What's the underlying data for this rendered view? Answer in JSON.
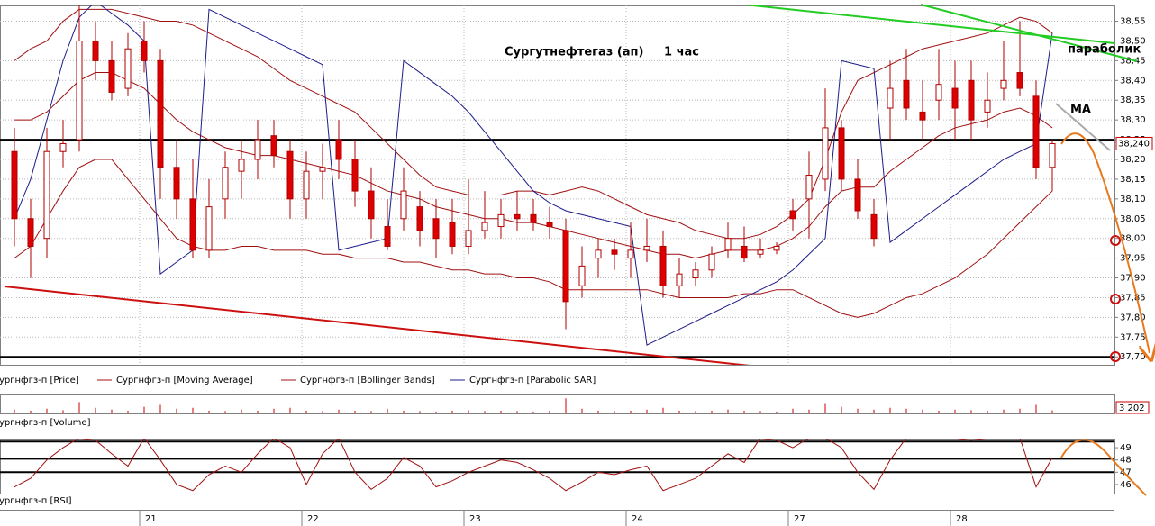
{
  "chart_data": {
    "type": "candlestick",
    "title": "Сургутнефтегаз (ап)",
    "subtitle": "1 час",
    "categories": [
      null,
      null,
      null,
      null,
      null,
      null,
      null,
      null,
      "21",
      null,
      null,
      null,
      null,
      null,
      null,
      null,
      null,
      null,
      "22",
      null,
      null,
      null,
      null,
      null,
      null,
      null,
      null,
      null,
      "23",
      null,
      null,
      null,
      null,
      null,
      null,
      null,
      null,
      null,
      "24",
      null,
      null,
      null,
      null,
      null,
      null,
      null,
      null,
      null,
      "27",
      null,
      null,
      null,
      null,
      null,
      null,
      null,
      null,
      null,
      "28",
      null,
      null,
      null,
      null,
      null,
      null
    ],
    "candles": [
      [
        38.22,
        38.28,
        37.98,
        38.05
      ],
      [
        38.05,
        38.1,
        37.9,
        37.98
      ],
      [
        38.0,
        38.28,
        37.95,
        38.22
      ],
      [
        38.22,
        38.3,
        38.18,
        38.24
      ],
      [
        38.25,
        38.59,
        38.22,
        38.5
      ],
      [
        38.5,
        38.55,
        38.4,
        38.45
      ],
      [
        38.45,
        38.5,
        38.35,
        38.37
      ],
      [
        38.38,
        38.52,
        38.36,
        38.48
      ],
      [
        38.5,
        38.55,
        38.42,
        38.45
      ],
      [
        38.45,
        38.48,
        38.1,
        38.18
      ],
      [
        38.18,
        38.25,
        38.05,
        38.1
      ],
      [
        38.1,
        38.2,
        37.95,
        37.97
      ],
      [
        37.97,
        38.15,
        37.95,
        38.08
      ],
      [
        38.1,
        38.22,
        38.05,
        38.18
      ],
      [
        38.17,
        38.25,
        38.1,
        38.2
      ],
      [
        38.2,
        38.3,
        38.15,
        38.25
      ],
      [
        38.26,
        38.3,
        38.18,
        38.21
      ],
      [
        38.22,
        38.25,
        38.05,
        38.1
      ],
      [
        38.1,
        38.22,
        38.05,
        38.17
      ],
      [
        38.17,
        38.24,
        38.1,
        38.18
      ],
      [
        38.25,
        38.3,
        38.15,
        38.2
      ],
      [
        38.2,
        38.25,
        38.08,
        38.12
      ],
      [
        38.12,
        38.18,
        38.0,
        38.05
      ],
      [
        38.03,
        38.1,
        37.97,
        37.98
      ],
      [
        38.05,
        38.18,
        38.02,
        38.12
      ],
      [
        38.08,
        38.12,
        37.98,
        38.02
      ],
      [
        38.05,
        38.1,
        37.95,
        38.0
      ],
      [
        38.04,
        38.1,
        37.96,
        37.98
      ],
      [
        37.98,
        38.15,
        37.96,
        38.02
      ],
      [
        38.02,
        38.12,
        38.0,
        38.04
      ],
      [
        38.03,
        38.1,
        38.0,
        38.06
      ],
      [
        38.06,
        38.12,
        38.02,
        38.05
      ],
      [
        38.06,
        38.1,
        38.02,
        38.04
      ],
      [
        38.04,
        38.08,
        38.0,
        38.03
      ],
      [
        38.02,
        38.05,
        37.77,
        37.84
      ],
      [
        37.88,
        37.98,
        37.85,
        37.93
      ],
      [
        37.95,
        38.0,
        37.9,
        37.97
      ],
      [
        37.97,
        38.0,
        37.92,
        37.96
      ],
      [
        37.95,
        38.04,
        37.9,
        37.97
      ],
      [
        37.97,
        38.05,
        37.94,
        37.98
      ],
      [
        37.98,
        38.02,
        37.85,
        37.88
      ],
      [
        37.88,
        37.95,
        37.85,
        37.91
      ],
      [
        37.9,
        37.94,
        37.88,
        37.92
      ],
      [
        37.92,
        37.98,
        37.9,
        37.96
      ],
      [
        37.97,
        38.04,
        37.95,
        38.0
      ],
      [
        37.98,
        38.03,
        37.94,
        37.95
      ],
      [
        37.96,
        38.0,
        37.95,
        37.97
      ],
      [
        37.97,
        37.99,
        37.96,
        37.98
      ],
      [
        38.07,
        38.1,
        38.02,
        38.05
      ],
      [
        38.1,
        38.22,
        38.0,
        38.16
      ],
      [
        38.15,
        38.38,
        38.12,
        38.28
      ],
      [
        38.28,
        38.3,
        38.12,
        38.15
      ],
      [
        38.15,
        38.2,
        38.05,
        38.07
      ],
      [
        38.06,
        38.1,
        37.98,
        38.0
      ],
      [
        38.33,
        38.45,
        38.25,
        38.38
      ],
      [
        38.4,
        38.48,
        38.3,
        38.33
      ],
      [
        38.32,
        38.4,
        38.25,
        38.3
      ],
      [
        38.35,
        38.48,
        38.3,
        38.39
      ],
      [
        38.38,
        38.45,
        38.25,
        38.33
      ],
      [
        38.4,
        38.45,
        38.25,
        38.3
      ],
      [
        38.32,
        38.42,
        38.28,
        38.35
      ],
      [
        38.38,
        38.5,
        38.35,
        38.4
      ],
      [
        38.42,
        38.55,
        38.36,
        38.38
      ],
      [
        38.36,
        38.4,
        38.15,
        38.18
      ],
      [
        38.18,
        38.25,
        38.12,
        38.24
      ]
    ],
    "up_color": "#ffffff",
    "down_color": "#dd0000",
    "edge_color": "#b00000",
    "ylim": [
      37.68,
      38.59
    ],
    "yticks": [
      {
        "value": 38.55,
        "label": "38,55"
      },
      {
        "value": 38.5,
        "label": "38,50"
      },
      {
        "value": 38.45,
        "label": "38,45"
      },
      {
        "value": 38.4,
        "label": "38,40"
      },
      {
        "value": 38.35,
        "label": "38,35"
      },
      {
        "value": 38.3,
        "label": "38,30"
      },
      {
        "value": 38.25,
        "label": "38,25"
      },
      {
        "value": 38.2,
        "label": "38,20"
      },
      {
        "value": 38.15,
        "label": "38,15"
      },
      {
        "value": 38.1,
        "label": "38,10"
      },
      {
        "value": 38.05,
        "label": "38,05"
      },
      {
        "value": 38.0,
        "label": "38,00"
      },
      {
        "value": 37.95,
        "label": "37,95"
      },
      {
        "value": 37.9,
        "label": "37,90"
      },
      {
        "value": 37.85,
        "label": "37,85"
      },
      {
        "value": 37.8,
        "label": "37,80"
      },
      {
        "value": 37.75,
        "label": "37,75"
      },
      {
        "value": 37.7,
        "label": "37,70"
      }
    ],
    "grid": true,
    "last_price": {
      "value": 38.24,
      "label": "38,240"
    },
    "hlines": [
      38.25,
      37.7
    ],
    "price_legend": "Сургнфгз-п [Price]",
    "overlays": [
      {
        "name": "Сургнфгз-п [Moving Average]",
        "color": "#a01010",
        "values": [
          38.3,
          38.3,
          38.32,
          38.36,
          38.4,
          38.42,
          38.42,
          38.4,
          38.38,
          38.34,
          38.3,
          38.27,
          38.25,
          38.23,
          38.22,
          38.21,
          38.21,
          38.2,
          38.19,
          38.18,
          38.17,
          38.16,
          38.14,
          38.12,
          38.11,
          38.1,
          38.08,
          38.07,
          38.06,
          38.05,
          38.05,
          38.04,
          38.04,
          38.03,
          38.02,
          38.01,
          38.0,
          37.99,
          37.98,
          37.97,
          37.96,
          37.96,
          37.95,
          37.96,
          37.97,
          37.97,
          37.97,
          37.98,
          38.0,
          38.03,
          38.08,
          38.12,
          38.13,
          38.13,
          38.17,
          38.2,
          38.23,
          38.26,
          38.28,
          38.29,
          38.3,
          38.32,
          38.33,
          38.31,
          38.28
        ]
      },
      {
        "name": "Сургнфгз-п [Bollinger Bands]",
        "color": "#a01010",
        "upper": [
          38.45,
          38.48,
          38.5,
          38.55,
          38.58,
          38.58,
          38.58,
          38.57,
          38.56,
          38.55,
          38.55,
          38.54,
          38.52,
          38.5,
          38.48,
          38.46,
          38.43,
          38.4,
          38.38,
          38.36,
          38.34,
          38.32,
          38.28,
          38.24,
          38.2,
          38.16,
          38.13,
          38.12,
          38.11,
          38.11,
          38.11,
          38.12,
          38.12,
          38.11,
          38.12,
          38.13,
          38.12,
          38.1,
          38.08,
          38.06,
          38.05,
          38.04,
          38.02,
          38.01,
          38.0,
          38.0,
          38.01,
          38.03,
          38.06,
          38.1,
          38.2,
          38.32,
          38.4,
          38.42,
          38.44,
          38.46,
          38.48,
          38.49,
          38.5,
          38.51,
          38.52,
          38.54,
          38.56,
          38.55,
          38.52
        ],
        "lower": [
          37.95,
          37.98,
          38.05,
          38.12,
          38.18,
          38.2,
          38.2,
          38.15,
          38.1,
          38.05,
          38.0,
          37.98,
          37.97,
          37.97,
          37.98,
          37.98,
          37.97,
          37.97,
          37.97,
          37.96,
          37.96,
          37.95,
          37.95,
          37.95,
          37.94,
          37.94,
          37.93,
          37.92,
          37.92,
          37.91,
          37.91,
          37.9,
          37.9,
          37.89,
          37.87,
          37.87,
          37.87,
          37.87,
          37.87,
          37.87,
          37.86,
          37.85,
          37.85,
          37.85,
          37.85,
          37.86,
          37.86,
          37.87,
          37.87,
          37.85,
          37.83,
          37.81,
          37.8,
          37.81,
          37.83,
          37.85,
          37.86,
          37.88,
          37.9,
          37.93,
          37.96,
          38.0,
          38.04,
          38.08,
          38.12
        ]
      },
      {
        "name": "Сургнфгз-п [Parabolic SAR]",
        "color": "#1c1c8a",
        "values": [
          38.05,
          38.15,
          38.3,
          38.45,
          38.56,
          38.6,
          38.57,
          38.54,
          38.5,
          37.91,
          37.94,
          37.97,
          38.58,
          38.56,
          38.54,
          38.52,
          38.5,
          38.48,
          38.46,
          38.44,
          37.97,
          37.98,
          37.99,
          38.0,
          38.45,
          38.42,
          38.39,
          38.36,
          38.32,
          38.27,
          38.22,
          38.17,
          38.12,
          38.09,
          38.07,
          38.06,
          38.05,
          38.04,
          38.03,
          37.73,
          37.75,
          37.77,
          37.79,
          37.81,
          37.83,
          37.85,
          37.87,
          37.89,
          37.92,
          37.96,
          38.0,
          38.45,
          38.44,
          38.43,
          37.99,
          38.02,
          38.05,
          38.08,
          38.11,
          38.14,
          38.17,
          38.2,
          38.22,
          38.24,
          38.52
        ]
      }
    ],
    "annotations": [
      "параболик",
      "МА"
    ],
    "volume": {
      "name": "Сургнфгз-п [Volume]",
      "color": "#cc0000",
      "ylim": [
        0,
        20000
      ],
      "values": [
        4000,
        3000,
        5000,
        3500,
        12000,
        6000,
        4000,
        3000,
        7000,
        9000,
        5000,
        6000,
        3000,
        2500,
        4000,
        3000,
        5000,
        6000,
        3000,
        2500,
        4000,
        3000,
        2500,
        5000,
        3000,
        2500,
        2000,
        3000,
        3500,
        2500,
        3000,
        2500,
        2000,
        3000,
        16000,
        5000,
        3000,
        2500,
        3000,
        4000,
        6000,
        3000,
        2500,
        3000,
        4000,
        3000,
        2500,
        2000,
        5000,
        4000,
        11000,
        7000,
        5000,
        4000,
        6000,
        5000,
        4000,
        3000,
        4000,
        3500,
        3000,
        4000,
        5000,
        9000,
        3202
      ],
      "last_label": {
        "value": 3202,
        "label": "3 202"
      }
    },
    "rsi": {
      "name": "Сургнфгз-п [RSI]",
      "color": "#a01010",
      "ylim": [
        45.26,
        49.74
      ],
      "yticks": [
        49,
        48,
        47,
        46
      ],
      "hlines": [
        49.5,
        48.1,
        47
      ],
      "values": [
        45.8,
        46.5,
        48.0,
        49.0,
        49.8,
        49.6,
        48.5,
        47.5,
        49.8,
        48.0,
        46.0,
        45.5,
        46.8,
        47.5,
        47.0,
        48.5,
        49.8,
        49.0,
        46.0,
        48.5,
        49.8,
        47.0,
        45.6,
        46.5,
        48.2,
        47.5,
        45.8,
        46.3,
        47.0,
        47.5,
        48.0,
        47.8,
        47.2,
        46.5,
        45.5,
        46.2,
        47.0,
        46.8,
        47.2,
        47.5,
        45.5,
        46.0,
        46.5,
        47.5,
        48.5,
        47.8,
        49.8,
        49.6,
        49.0,
        49.8,
        49.8,
        49.0,
        47.0,
        45.6,
        48.0,
        49.8,
        49.8,
        49.8,
        49.8,
        49.6,
        49.8,
        49.8,
        49.8,
        45.8,
        48.2
      ]
    }
  }
}
